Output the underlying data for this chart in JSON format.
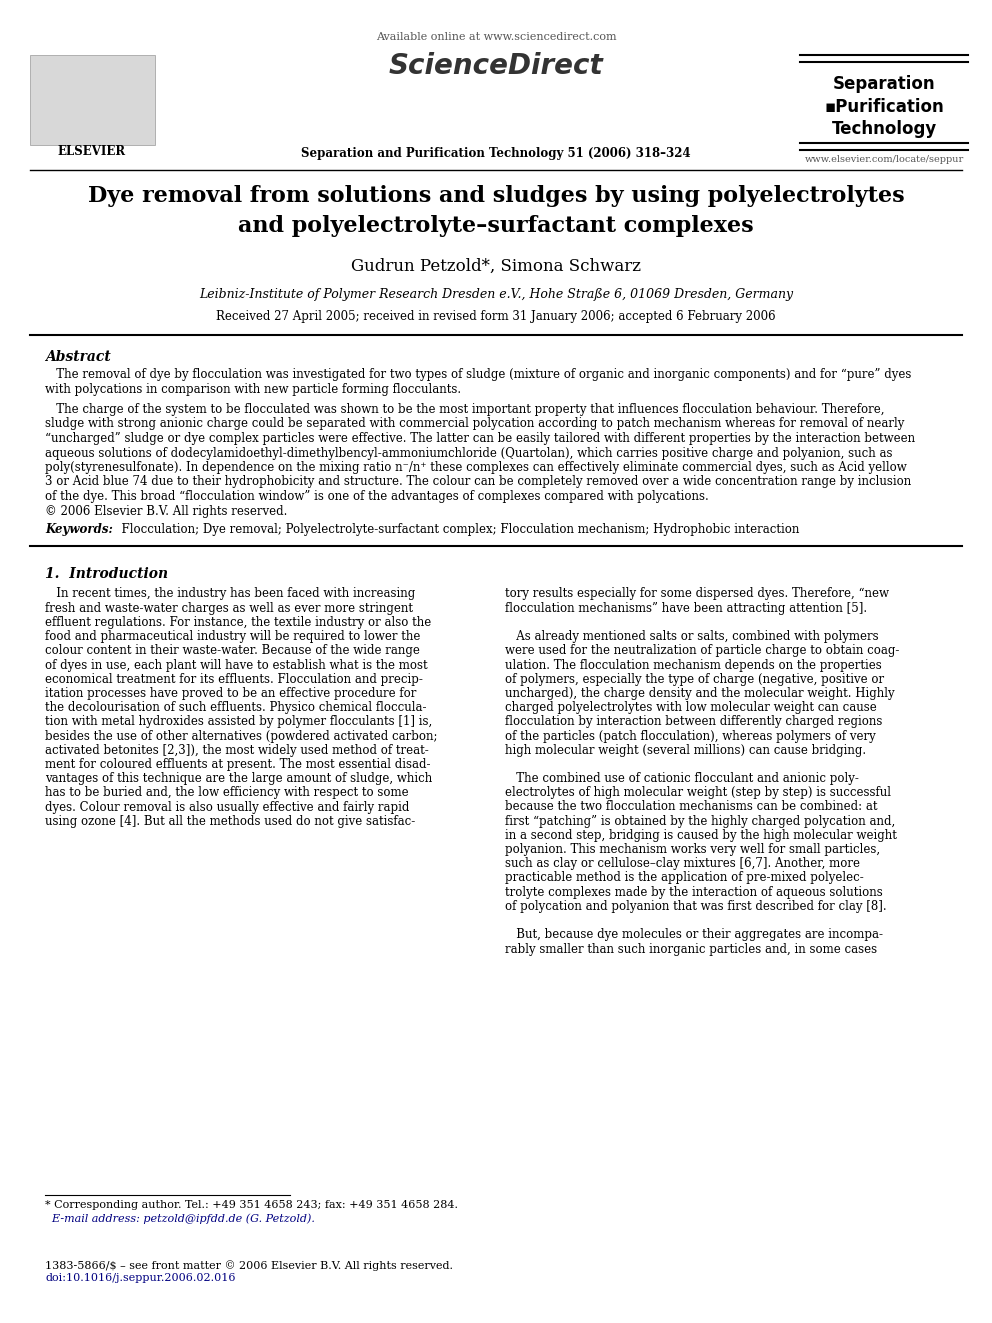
{
  "page_width": 9.92,
  "page_height": 13.23,
  "dpi": 100,
  "background_color": "#ffffff",
  "header": {
    "available_online": "Available online at www.sciencedirect.com",
    "sciencedirect": "ScienceDirect",
    "journal_name_bold": "Separation and Purification Technology 51 (2006) 318–324",
    "journal_right_line1": "Separation",
    "journal_right_line2": "▪Purification",
    "journal_right_line3": "Technology",
    "journal_right_url": "www.elsevier.com/locate/seppur"
  },
  "title_line1": "Dye removal from solutions and sludges by using polyelectrolytes",
  "title_line2": "and polyelectrolyte–surfactant complexes",
  "authors": "Gudrun Petzold*, Simona Schwarz",
  "affiliation": "Leibniz-Institute of Polymer Research Dresden e.V., Hohe Straße 6, 01069 Dresden, Germany",
  "received": "Received 27 April 2005; received in revised form 31 January 2006; accepted 6 February 2006",
  "abstract_heading": "Abstract",
  "abstract_p1_indent": "   The removal of dye by flocculation was investigated for two types of sludge (mixture of organic and inorganic components) and for “pure” dyes",
  "abstract_p1_cont": "with polycations in comparison with new particle forming flocculants.",
  "abstract_p2_indent": "   The charge of the system to be flocculated was shown to be the most important property that influences flocculation behaviour. Therefore,",
  "abstract_p2_l2": "sludge with strong anionic charge could be separated with commercial polycation according to patch mechanism whereas for removal of nearly",
  "abstract_p2_l3": "“uncharged” sludge or dye complex particles were effective. The latter can be easily tailored with different properties by the interaction between",
  "abstract_p2_l4": "aqueous solutions of dodecylamidoethyl-dimethylbencyl-ammoniumchloride (Quartolan), which carries positive charge and polyanion, such as",
  "abstract_p2_l5": "poly(styrenesulfonate). In dependence on the mixing ratio n⁻/n⁺ these complexes can effectively eliminate commercial dyes, such as Acid yellow",
  "abstract_p2_l6": "3 or Acid blue 74 due to their hydrophobicity and structure. The colour can be completely removed over a wide concentration range by inclusion",
  "abstract_p2_l7": "of the dye. This broad “flocculation window” is one of the advantages of complexes compared with polycations.",
  "abstract_copyright": "© 2006 Elsevier B.V. All rights reserved.",
  "keywords_label": "Keywords:",
  "keywords_text": "  Flocculation; Dye removal; Polyelectrolyte-surfactant complex; Flocculation mechanism; Hydrophobic interaction",
  "section1_heading": "1.  Introduction",
  "col1_lines": [
    "   In recent times, the industry has been faced with increasing",
    "fresh and waste-water charges as well as ever more stringent",
    "effluent regulations. For instance, the textile industry or also the",
    "food and pharmaceutical industry will be required to lower the",
    "colour content in their waste-water. Because of the wide range",
    "of dyes in use, each plant will have to establish what is the most",
    "economical treatment for its effluents. Flocculation and precip-",
    "itation processes have proved to be an effective procedure for",
    "the decolourisation of such effluents. Physico chemical floccula-",
    "tion with metal hydroxides assisted by polymer flocculants [1] is,",
    "besides the use of other alternatives (powdered activated carbon;",
    "activated betonites [2,3]), the most widely used method of treat-",
    "ment for coloured effluents at present. The most essential disad-",
    "vantages of this technique are the large amount of sludge, which",
    "has to be buried and, the low efficiency with respect to some",
    "dyes. Colour removal is also usually effective and fairly rapid",
    "using ozone [4]. But all the methods used do not give satisfac-"
  ],
  "col2_lines": [
    "tory results especially for some dispersed dyes. Therefore, “new",
    "flocculation mechanisms” have been attracting attention [5].",
    "",
    "   As already mentioned salts or salts, combined with polymers",
    "were used for the neutralization of particle charge to obtain coag-",
    "ulation. The flocculation mechanism depends on the properties",
    "of polymers, especially the type of charge (negative, positive or",
    "uncharged), the charge density and the molecular weight. Highly",
    "charged polyelectrolytes with low molecular weight can cause",
    "flocculation by interaction between differently charged regions",
    "of the particles (patch flocculation), whereas polymers of very",
    "high molecular weight (several millions) can cause bridging.",
    "",
    "   The combined use of cationic flocculant and anionic poly-",
    "electrolytes of high molecular weight (step by step) is successful",
    "because the two flocculation mechanisms can be combined: at",
    "first “patching” is obtained by the highly charged polycation and,",
    "in a second step, bridging is caused by the high molecular weight",
    "polyanion. This mechanism works very well for small particles,",
    "such as clay or cellulose–clay mixtures [6,7]. Another, more",
    "practicable method is the application of pre-mixed polyelec-",
    "trolyte complexes made by the interaction of aqueous solutions",
    "of polycation and polyanion that was first described for clay [8].",
    "",
    "   But, because dye molecules or their aggregates are incompa-",
    "rably smaller than such inorganic particles and, in some cases"
  ],
  "footnote_line": "* Corresponding author. Tel.: +49 351 4658 243; fax: +49 351 4658 284.",
  "footnote_email": "  E-mail address: petzold@ipfdd.de (G. Petzold).",
  "footer_issn": "1383-5866/$ – see front matter © 2006 Elsevier B.V. All rights reserved.",
  "footer_doi": "doi:10.1016/j.seppur.2006.02.016"
}
